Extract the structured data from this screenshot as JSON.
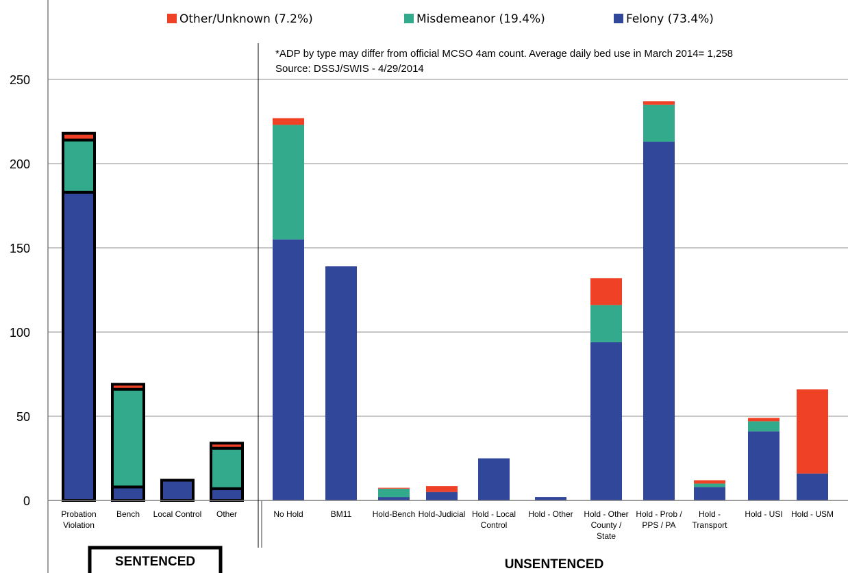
{
  "chart_data": {
    "type": "bar",
    "stacked": true,
    "title": "",
    "xlabel": "",
    "ylabel": "",
    "ylim": [
      0,
      300
    ],
    "y_ticks": [
      0,
      50,
      100,
      150,
      200,
      250,
      300
    ],
    "grid": true,
    "legend_position": "top",
    "notes": [
      "*ADP by type may differ from official MCSO 4am count.  Average daily bed use in March 2014= 1,258",
      "Source: DSSJ/SWIS - 4/29/2014"
    ],
    "groups": [
      {
        "label": "SENTENCED",
        "categories": [
          "Probation Violation",
          "Bench",
          "Local Control",
          "Other"
        ]
      },
      {
        "label": "UNSENTENCED",
        "categories": [
          "No Hold",
          "BM11",
          "Hold-Bench",
          "Hold-Judicial",
          "Hold - Local Control",
          "Hold - Other",
          "Hold - Other County / State",
          "Hold - Prob / PPS / PA",
          "Hold - Transport",
          "Hold - USI",
          "Hold - USM"
        ]
      }
    ],
    "categories": [
      "Probation Violation",
      "Bench",
      "Local Control",
      "Other",
      "No Hold",
      "BM11",
      "Hold-Bench",
      "Hold-Judicial",
      "Hold - Local Control",
      "Hold - Other",
      "Hold - Other County / State",
      "Hold - Prob / PPS / PA",
      "Hold - Transport",
      "Hold - USI",
      "Hold - USM"
    ],
    "category_lines": [
      [
        "Probation",
        "Violation"
      ],
      [
        "Bench"
      ],
      [
        "Local Control"
      ],
      [
        "Other"
      ],
      [
        "No Hold"
      ],
      [
        "BM11"
      ],
      [
        "Hold-Bench"
      ],
      [
        "Hold-Judicial"
      ],
      [
        "Hold - Local",
        "Control"
      ],
      [
        "Hold - Other"
      ],
      [
        "Hold - Other",
        "County /",
        "State"
      ],
      [
        "Hold - Prob /",
        "PPS / PA"
      ],
      [
        "Hold -",
        "Transport"
      ],
      [
        "Hold - USI"
      ],
      [
        "Hold - USM"
      ]
    ],
    "series": [
      {
        "name": "Felony (73.4%)",
        "legend_label": "Felony (73.4%)",
        "color": "#31479a",
        "values": [
          183,
          8,
          12,
          7,
          155,
          139,
          2,
          5,
          25,
          2,
          94,
          213,
          8,
          41,
          16
        ]
      },
      {
        "name": "Misdemeanor (19.4%)",
        "legend_label": "Misdemeanor (19.4%)",
        "color": "#34aa8c",
        "values": [
          31,
          58,
          0,
          24,
          68,
          0,
          5,
          0,
          0,
          0,
          22,
          22,
          2,
          6,
          0
        ]
      },
      {
        "name": "Other/Unknown (7.2%)",
        "legend_label": "Other/Unknown (7.2%)",
        "color": "#ee4125",
        "values": [
          4,
          3,
          0,
          3,
          4,
          0,
          0.5,
          3.5,
          0,
          0,
          16,
          2,
          2,
          2,
          50
        ]
      }
    ],
    "legend_order": [
      "Other/Unknown (7.2%)",
      "Misdemeanor (19.4%)",
      "Felony (73.4%)"
    ],
    "outlined_categories": [
      "Probation Violation",
      "Bench",
      "Local Control",
      "Other"
    ]
  }
}
